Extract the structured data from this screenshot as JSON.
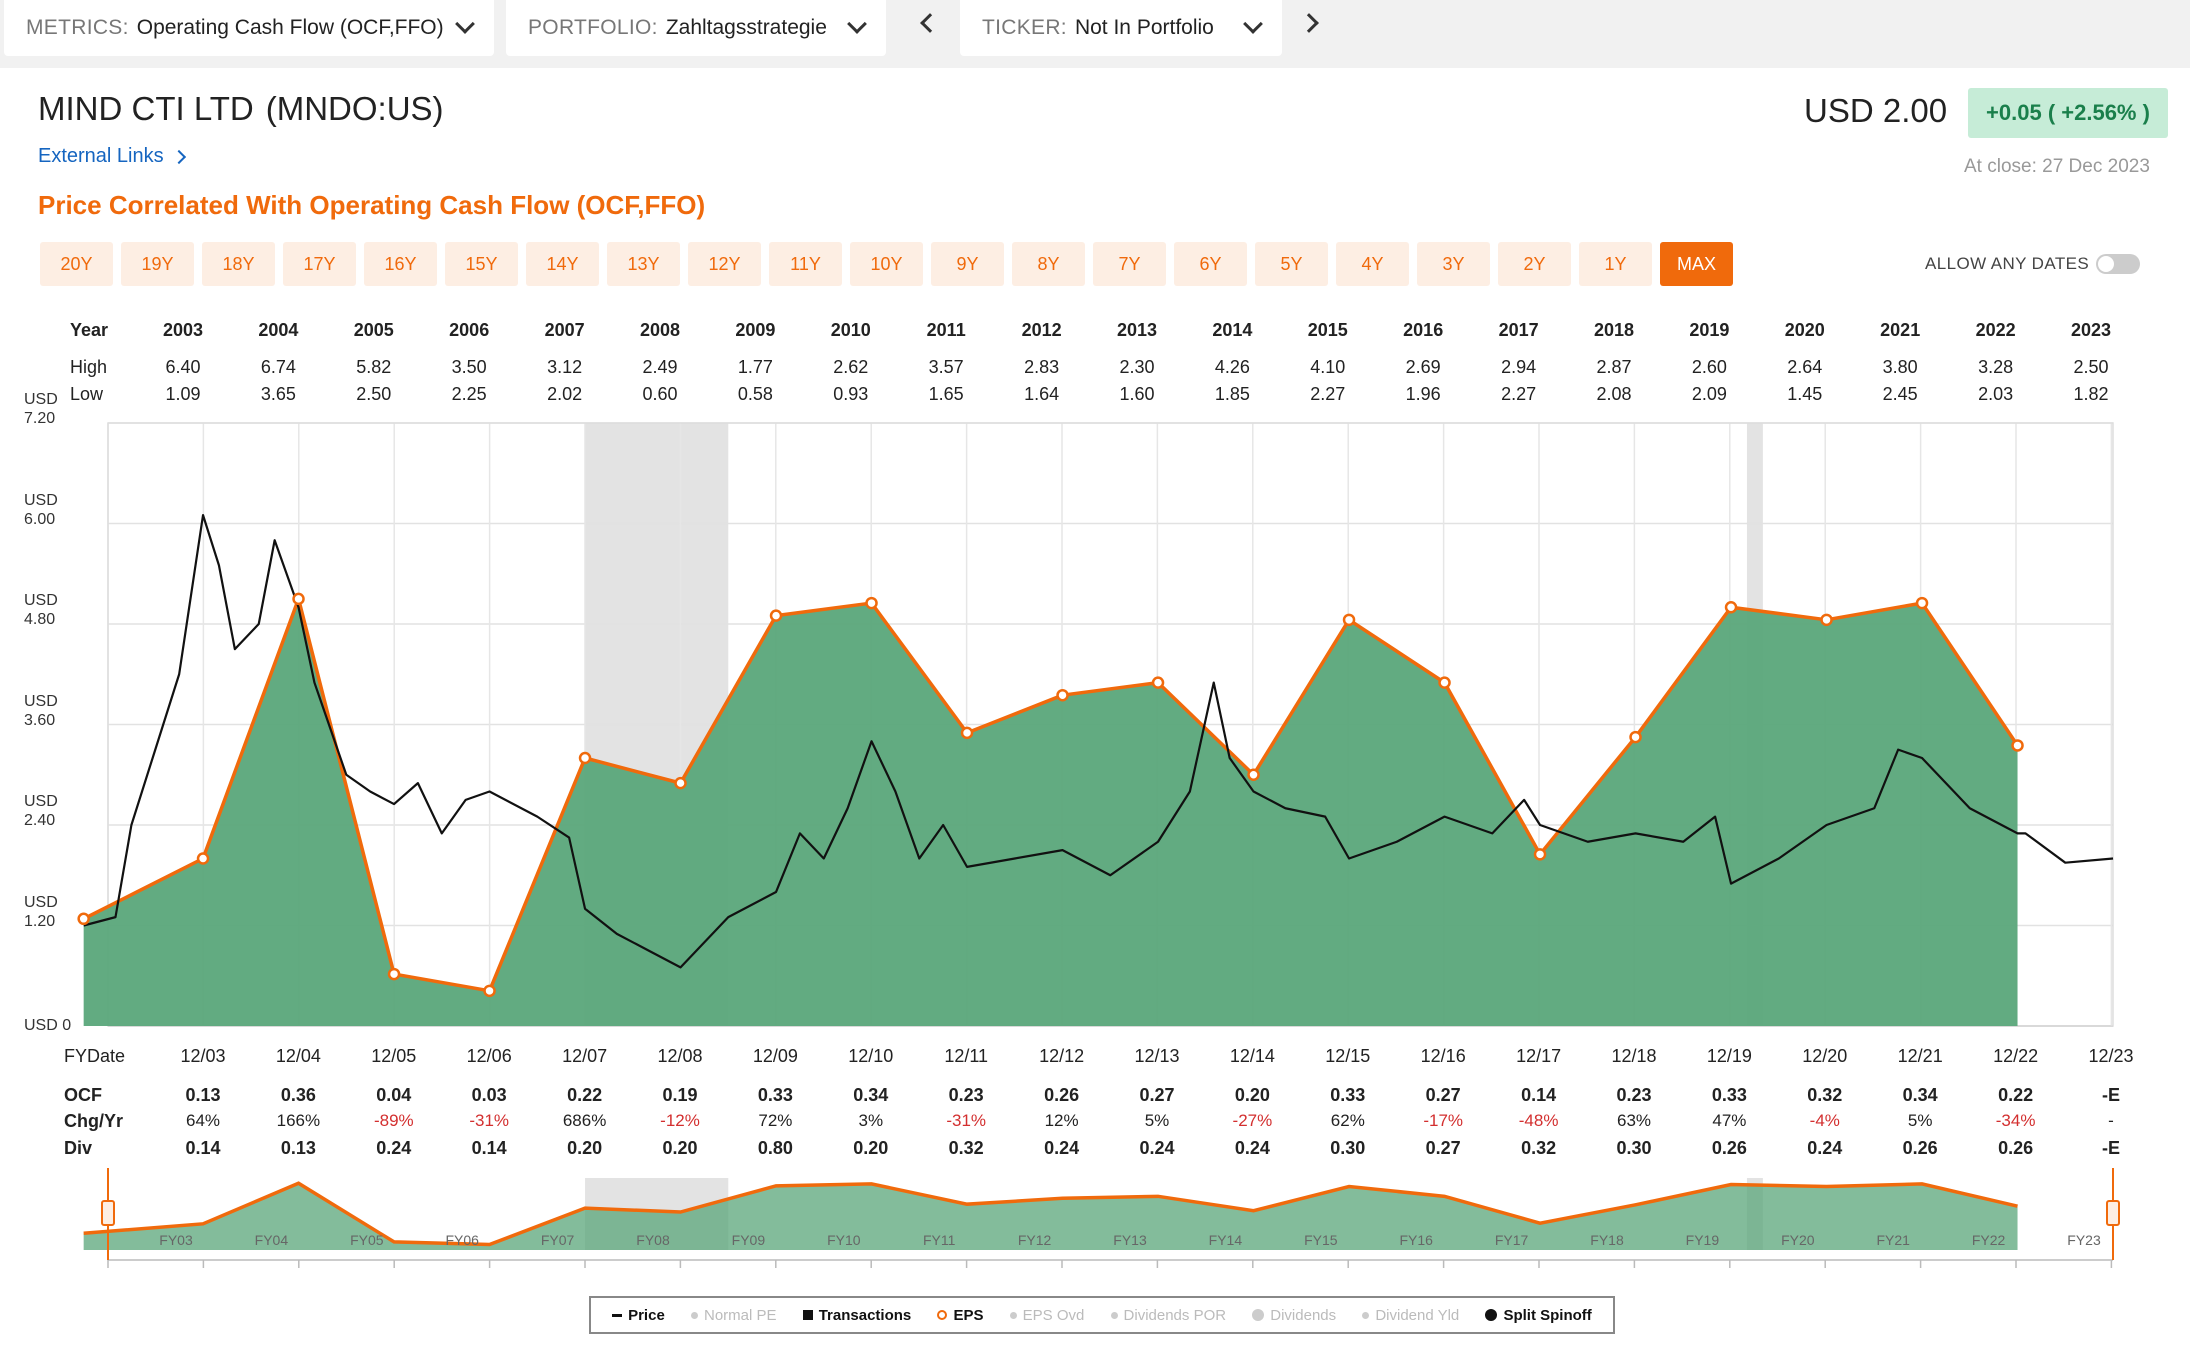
{
  "topbar": {
    "metrics_label": "METRICS:",
    "metrics_value": "Operating Cash Flow (OCF,FFO)",
    "portfolio_label": "PORTFOLIO:",
    "portfolio_value": "Zahltagsstrategie",
    "ticker_label": "TICKER:",
    "ticker_value": "Not In Portfolio"
  },
  "header": {
    "company": "MIND CTI LTD",
    "ticker": "(MNDO:US)",
    "external_links": "External Links",
    "subtitle": "Price Correlated With Operating Cash Flow (OCF,FFO)",
    "price": "USD 2.00",
    "change": "+0.05 ( +2.56% )",
    "close_text": "At close: 27 Dec 2023"
  },
  "ranges": [
    "20Y",
    "19Y",
    "18Y",
    "17Y",
    "16Y",
    "15Y",
    "14Y",
    "13Y",
    "12Y",
    "11Y",
    "10Y",
    "9Y",
    "8Y",
    "7Y",
    "6Y",
    "5Y",
    "4Y",
    "3Y",
    "2Y",
    "1Y",
    "MAX"
  ],
  "range_active": "MAX",
  "allow_any_dates": "ALLOW ANY DATES",
  "yearly_table": {
    "labels": {
      "year": "Year",
      "high": "High",
      "low": "Low"
    },
    "years": [
      "2003",
      "2004",
      "2005",
      "2006",
      "2007",
      "2008",
      "2009",
      "2010",
      "2011",
      "2012",
      "2013",
      "2014",
      "2015",
      "2016",
      "2017",
      "2018",
      "2019",
      "2020",
      "2021",
      "2022",
      "2023"
    ],
    "high": [
      "6.40",
      "6.74",
      "5.82",
      "3.50",
      "3.12",
      "2.49",
      "1.77",
      "2.62",
      "3.57",
      "2.83",
      "2.30",
      "4.26",
      "4.10",
      "2.69",
      "2.94",
      "2.87",
      "2.60",
      "2.64",
      "3.80",
      "3.28",
      "2.50"
    ],
    "low": [
      "1.09",
      "3.65",
      "2.50",
      "2.25",
      "2.02",
      "0.60",
      "0.58",
      "0.93",
      "1.65",
      "1.64",
      "1.60",
      "1.85",
      "2.27",
      "1.96",
      "2.27",
      "2.08",
      "2.09",
      "1.45",
      "2.45",
      "2.03",
      "1.82"
    ]
  },
  "y_axis": [
    {
      "unit": "USD",
      "value": "7.20"
    },
    {
      "unit": "USD",
      "value": "6.00"
    },
    {
      "unit": "USD",
      "value": "4.80"
    },
    {
      "unit": "USD",
      "value": "3.60"
    },
    {
      "unit": "USD",
      "value": "2.40"
    },
    {
      "unit": "USD",
      "value": "1.20"
    },
    {
      "unit": "USD",
      "value": "0"
    }
  ],
  "fy_table": {
    "labels": {
      "fydate": "FYDate",
      "ocf": "OCF",
      "chg": "Chg/Yr",
      "div": "Div"
    },
    "dates": [
      "12/03",
      "12/04",
      "12/05",
      "12/06",
      "12/07",
      "12/08",
      "12/09",
      "12/10",
      "12/11",
      "12/12",
      "12/13",
      "12/14",
      "12/15",
      "12/16",
      "12/17",
      "12/18",
      "12/19",
      "12/20",
      "12/21",
      "12/22",
      "12/23"
    ],
    "ocf": [
      "0.13",
      "0.36",
      "0.04",
      "0.03",
      "0.22",
      "0.19",
      "0.33",
      "0.34",
      "0.23",
      "0.26",
      "0.27",
      "0.20",
      "0.33",
      "0.27",
      "0.14",
      "0.23",
      "0.33",
      "0.32",
      "0.34",
      "0.22",
      "-E"
    ],
    "chg": [
      "64%",
      "166%",
      "-89%",
      "-31%",
      "686%",
      "-12%",
      "72%",
      "3%",
      "-31%",
      "12%",
      "5%",
      "-27%",
      "62%",
      "-17%",
      "-48%",
      "63%",
      "47%",
      "-4%",
      "5%",
      "-34%",
      "-"
    ],
    "div": [
      "0.14",
      "0.13",
      "0.24",
      "0.14",
      "0.20",
      "0.20",
      "0.80",
      "0.20",
      "0.32",
      "0.24",
      "0.24",
      "0.24",
      "0.30",
      "0.27",
      "0.32",
      "0.30",
      "0.26",
      "0.24",
      "0.26",
      "0.26",
      "-E"
    ]
  },
  "mini_labels": [
    "FY03",
    "FY04",
    "FY05",
    "FY06",
    "FY07",
    "FY08",
    "FY09",
    "FY10",
    "FY11",
    "FY12",
    "FY13",
    "FY14",
    "FY15",
    "FY16",
    "FY17",
    "FY18",
    "FY19",
    "FY20",
    "FY21",
    "FY22",
    "FY23"
  ],
  "legend": [
    {
      "label": "Price",
      "on": true,
      "marker": "dash"
    },
    {
      "label": "Normal PE",
      "on": false,
      "marker": "dot"
    },
    {
      "label": "Transactions",
      "on": true,
      "marker": "square"
    },
    {
      "label": "EPS",
      "on": true,
      "marker": "ring"
    },
    {
      "label": "EPS Ovd",
      "on": false,
      "marker": "dot"
    },
    {
      "label": "Dividends POR",
      "on": false,
      "marker": "dot"
    },
    {
      "label": "Dividends",
      "on": false,
      "marker": "bigdot"
    },
    {
      "label": "Dividend Yld",
      "on": false,
      "marker": "dot"
    },
    {
      "label": "Split Spinoff",
      "on": true,
      "marker": "bigdot"
    }
  ],
  "colors": {
    "accent": "#f06a0c",
    "area": "#5aa67a",
    "price": "#111111",
    "positive": "#1a7f4b",
    "negative": "#d32f2f",
    "recession": "#e3e3e3"
  },
  "chart_data": {
    "type": "area",
    "ylim": [
      0,
      7.2
    ],
    "x_dates": [
      "2002-09",
      "2003-12",
      "2004-12",
      "2005-12",
      "2006-12",
      "2007-12",
      "2008-12",
      "2009-12",
      "2010-12",
      "2011-12",
      "2012-12",
      "2013-12",
      "2014-12",
      "2015-12",
      "2016-12",
      "2017-12",
      "2018-12",
      "2019-12",
      "2020-12",
      "2021-12",
      "2022-12",
      "2023-12"
    ],
    "series": [
      {
        "name": "EPS",
        "type": "area",
        "points": [
          [
            "2002-09",
            1.28
          ],
          [
            "2003-12",
            2.0
          ],
          [
            "2004-12",
            5.1
          ],
          [
            "2005-12",
            0.62
          ],
          [
            "2006-12",
            0.42
          ],
          [
            "2007-12",
            3.2
          ],
          [
            "2008-12",
            2.9
          ],
          [
            "2009-12",
            4.9
          ],
          [
            "2010-12",
            5.05
          ],
          [
            "2011-12",
            3.5
          ],
          [
            "2012-12",
            3.95
          ],
          [
            "2013-12",
            4.1
          ],
          [
            "2014-12",
            3.0
          ],
          [
            "2015-12",
            4.85
          ],
          [
            "2016-12",
            4.1
          ],
          [
            "2017-12",
            2.05
          ],
          [
            "2018-12",
            3.45
          ],
          [
            "2019-12",
            5.0
          ],
          [
            "2020-12",
            4.85
          ],
          [
            "2021-12",
            5.05
          ],
          [
            "2022-12",
            3.35
          ]
        ]
      },
      {
        "name": "Price",
        "type": "line",
        "points": [
          [
            "2002-09",
            1.2
          ],
          [
            "2003-01",
            1.3
          ],
          [
            "2003-03",
            2.4
          ],
          [
            "2003-06",
            3.3
          ],
          [
            "2003-09",
            4.2
          ],
          [
            "2003-12",
            6.1
          ],
          [
            "2004-02",
            5.5
          ],
          [
            "2004-04",
            4.5
          ],
          [
            "2004-07",
            4.8
          ],
          [
            "2004-09",
            5.8
          ],
          [
            "2004-12",
            5.0
          ],
          [
            "2005-02",
            4.1
          ],
          [
            "2005-06",
            3.0
          ],
          [
            "2005-09",
            2.8
          ],
          [
            "2005-12",
            2.65
          ],
          [
            "2006-03",
            2.9
          ],
          [
            "2006-06",
            2.3
          ],
          [
            "2006-09",
            2.7
          ],
          [
            "2006-12",
            2.8
          ],
          [
            "2007-06",
            2.5
          ],
          [
            "2007-10",
            2.25
          ],
          [
            "2007-12",
            1.4
          ],
          [
            "2008-04",
            1.1
          ],
          [
            "2008-08",
            0.9
          ],
          [
            "2008-12",
            0.7
          ],
          [
            "2009-03",
            1.0
          ],
          [
            "2009-06",
            1.3
          ],
          [
            "2009-12",
            1.6
          ],
          [
            "2010-03",
            2.3
          ],
          [
            "2010-06",
            2.0
          ],
          [
            "2010-09",
            2.6
          ],
          [
            "2010-12",
            3.4
          ],
          [
            "2011-03",
            2.8
          ],
          [
            "2011-06",
            2.0
          ],
          [
            "2011-09",
            2.4
          ],
          [
            "2011-12",
            1.9
          ],
          [
            "2012-06",
            2.0
          ],
          [
            "2012-12",
            2.1
          ],
          [
            "2013-06",
            1.8
          ],
          [
            "2013-12",
            2.2
          ],
          [
            "2014-04",
            2.8
          ],
          [
            "2014-07",
            4.1
          ],
          [
            "2014-09",
            3.2
          ],
          [
            "2014-12",
            2.8
          ],
          [
            "2015-04",
            2.6
          ],
          [
            "2015-09",
            2.5
          ],
          [
            "2015-12",
            2.0
          ],
          [
            "2016-06",
            2.2
          ],
          [
            "2016-12",
            2.5
          ],
          [
            "2017-06",
            2.3
          ],
          [
            "2017-10",
            2.7
          ],
          [
            "2017-12",
            2.4
          ],
          [
            "2018-06",
            2.2
          ],
          [
            "2018-12",
            2.3
          ],
          [
            "2019-06",
            2.2
          ],
          [
            "2019-10",
            2.5
          ],
          [
            "2019-12",
            1.7
          ],
          [
            "2020-06",
            2.0
          ],
          [
            "2020-12",
            2.4
          ],
          [
            "2021-06",
            2.6
          ],
          [
            "2021-09",
            3.3
          ],
          [
            "2021-12",
            3.2
          ],
          [
            "2022-06",
            2.6
          ],
          [
            "2022-12",
            2.3
          ],
          [
            "2023-01",
            2.3
          ],
          [
            "2023-06",
            1.95
          ],
          [
            "2023-12",
            2.0
          ]
        ]
      }
    ],
    "recessions": [
      [
        "2007-12",
        "2009-06"
      ],
      [
        "2020-02",
        "2020-04"
      ]
    ]
  }
}
